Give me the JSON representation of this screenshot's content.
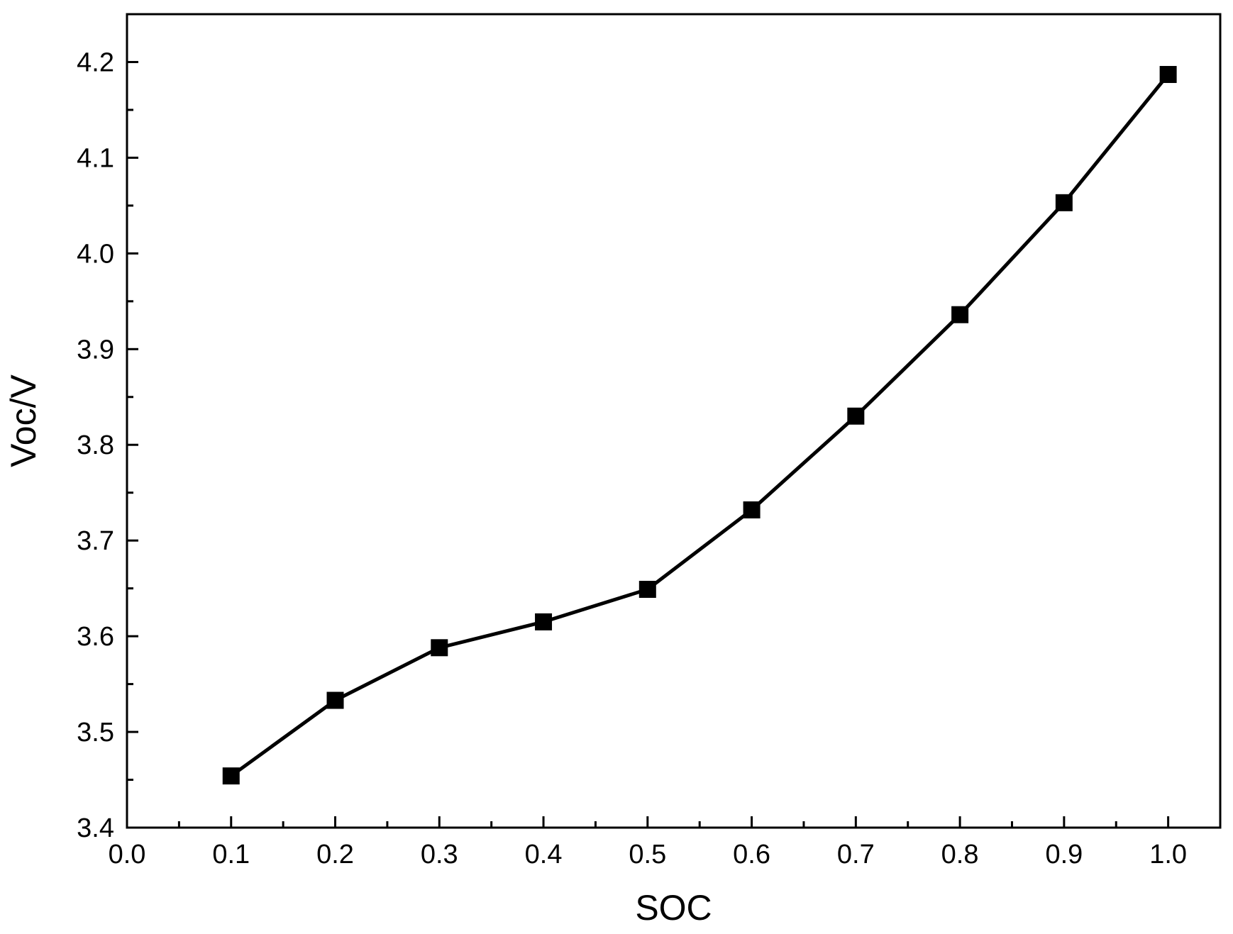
{
  "chart_data": {
    "type": "line",
    "title": "",
    "xlabel": "SOC",
    "ylabel": "Voc/V",
    "xlim": [
      0.0,
      1.05
    ],
    "ylim": [
      3.4,
      4.25
    ],
    "x_ticks": [
      "0.0",
      "0.1",
      "0.2",
      "0.3",
      "0.4",
      "0.5",
      "0.6",
      "0.7",
      "0.8",
      "0.9",
      "1.0"
    ],
    "y_ticks": [
      "3.4",
      "3.5",
      "3.6",
      "3.7",
      "3.8",
      "3.9",
      "4.0",
      "4.1",
      "4.2"
    ],
    "grid": false,
    "legend": "none",
    "marker": "square",
    "series": [
      {
        "x": [
          0.1,
          0.2,
          0.3,
          0.4,
          0.5,
          0.6,
          0.7,
          0.8,
          0.9,
          1.0
        ],
        "y": [
          3.454,
          3.533,
          3.588,
          3.615,
          3.649,
          3.732,
          3.83,
          3.936,
          4.053,
          4.187
        ],
        "color": "#000000"
      }
    ]
  }
}
